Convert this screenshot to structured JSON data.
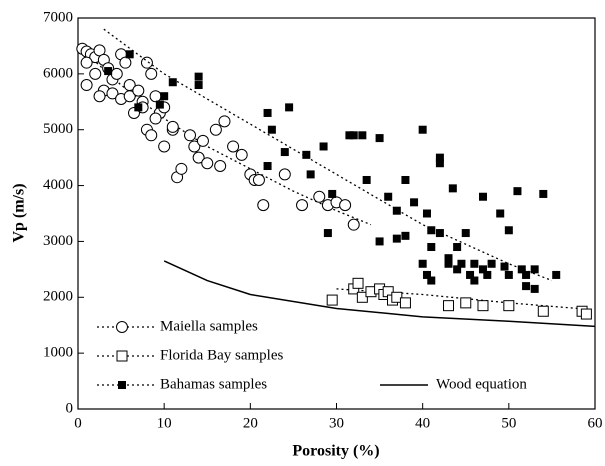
{
  "chart_data": {
    "type": "scatter",
    "x_label": "Porosity  (%)",
    "y_label": "Vp  (m/s)",
    "xlim": [
      0,
      60
    ],
    "ylim": [
      0,
      7000
    ],
    "xticks": [
      0,
      10,
      20,
      30,
      40,
      50,
      60
    ],
    "yticks": [
      0,
      1000,
      2000,
      3000,
      4000,
      5000,
      6000,
      7000
    ],
    "grid": false,
    "series": [
      {
        "name": "Maiella samples",
        "kind": "scatter",
        "marker": "circle",
        "filled": false,
        "color": "#000000",
        "x": [
          0.5,
          1,
          1.5,
          2,
          2.5,
          1,
          2,
          3,
          3.5,
          4,
          4.5,
          5,
          5.5,
          6,
          3,
          4,
          5,
          6,
          7,
          7.5,
          8,
          8.5,
          9,
          9.5,
          8,
          8.5,
          9,
          10,
          11,
          11.5,
          12,
          13,
          13.5,
          14,
          14.5,
          15,
          16,
          16.5,
          17,
          18,
          19,
          20,
          20.5,
          21,
          21.5,
          24,
          26,
          28,
          29,
          30,
          31,
          32,
          1,
          2.5,
          6.5,
          10,
          11,
          7.5
        ],
        "values": [
          6450,
          6400,
          6350,
          6300,
          6420,
          6200,
          6000,
          6250,
          6100,
          5900,
          6000,
          6350,
          6200,
          5800,
          5700,
          5650,
          5550,
          5600,
          5700,
          5500,
          6200,
          6000,
          5600,
          5300,
          5000,
          4900,
          5200,
          4700,
          5000,
          4150,
          4300,
          4900,
          4700,
          4500,
          4800,
          4400,
          5000,
          4350,
          5150,
          4700,
          4550,
          4200,
          4100,
          4100,
          3650,
          4200,
          3650,
          3800,
          3650,
          3700,
          3650,
          3300,
          5800,
          5600,
          5300,
          5400,
          5050,
          5400
        ],
        "trend": {
          "x": [
            0,
            5,
            10,
            15,
            20,
            25,
            30,
            34
          ],
          "values": [
            6500,
            5800,
            5200,
            4700,
            4300,
            3900,
            3550,
            3300
          ]
        }
      },
      {
        "name": "Florida Bay samples",
        "kind": "scatter",
        "marker": "square",
        "filled": false,
        "color": "#000000",
        "x": [
          29.5,
          32,
          32.5,
          33,
          34,
          35,
          35.5,
          36,
          36.5,
          37,
          38,
          43,
          45,
          47,
          50,
          54,
          58.5,
          59
        ],
        "values": [
          1950,
          2150,
          2250,
          2000,
          2100,
          2150,
          2050,
          2100,
          1950,
          2000,
          1900,
          1850,
          1900,
          1850,
          1850,
          1750,
          1750,
          1700
        ],
        "trend": {
          "x": [
            30,
            40,
            50,
            58
          ],
          "values": [
            2150,
            2050,
            1900,
            1800
          ]
        }
      },
      {
        "name": "Bahamas samples",
        "kind": "scatter",
        "marker": "square",
        "filled": true,
        "color": "#000000",
        "x": [
          6,
          3.5,
          7,
          9.5,
          10,
          11,
          14,
          14,
          22,
          22.5,
          24.5,
          24,
          22,
          26.5,
          27,
          28.5,
          29,
          29.5,
          31.5,
          32,
          33,
          33.5,
          35,
          35,
          36,
          37,
          37,
          38,
          38,
          39,
          40,
          40.5,
          40,
          40.5,
          41,
          41,
          42,
          42,
          42,
          43,
          43.5,
          44,
          44,
          44.5,
          45,
          45.5,
          46,
          46,
          47,
          47,
          48,
          49,
          49.5,
          50,
          50,
          51,
          51.5,
          52,
          52,
          53,
          53,
          54,
          55.5,
          41,
          43,
          47.5
        ],
        "values": [
          6350,
          6050,
          5400,
          5450,
          5600,
          5850,
          5950,
          5800,
          5300,
          5000,
          5400,
          4600,
          4350,
          4550,
          4200,
          4700,
          3150,
          3850,
          4900,
          4900,
          4900,
          4100,
          4850,
          3000,
          3800,
          3550,
          3050,
          3100,
          4100,
          3700,
          5000,
          3500,
          2600,
          2400,
          3200,
          2900,
          4400,
          4500,
          3150,
          2700,
          3950,
          2900,
          2500,
          2600,
          3150,
          2400,
          2600,
          2300,
          3800,
          2500,
          2600,
          3500,
          2550,
          2400,
          3200,
          3900,
          2500,
          2400,
          2200,
          2500,
          2150,
          3850,
          2400,
          2300,
          2600,
          2400
        ],
        "trend": {
          "x": [
            3,
            10,
            20,
            30,
            40,
            50,
            55
          ],
          "values": [
            6800,
            6000,
            5100,
            4200,
            3300,
            2600,
            2300
          ]
        }
      },
      {
        "name": "Wood equation",
        "kind": "line",
        "color": "#000000",
        "x": [
          10,
          15,
          20,
          30,
          40,
          50,
          60
        ],
        "values": [
          2650,
          2300,
          2050,
          1800,
          1650,
          1570,
          1480
        ]
      }
    ]
  }
}
